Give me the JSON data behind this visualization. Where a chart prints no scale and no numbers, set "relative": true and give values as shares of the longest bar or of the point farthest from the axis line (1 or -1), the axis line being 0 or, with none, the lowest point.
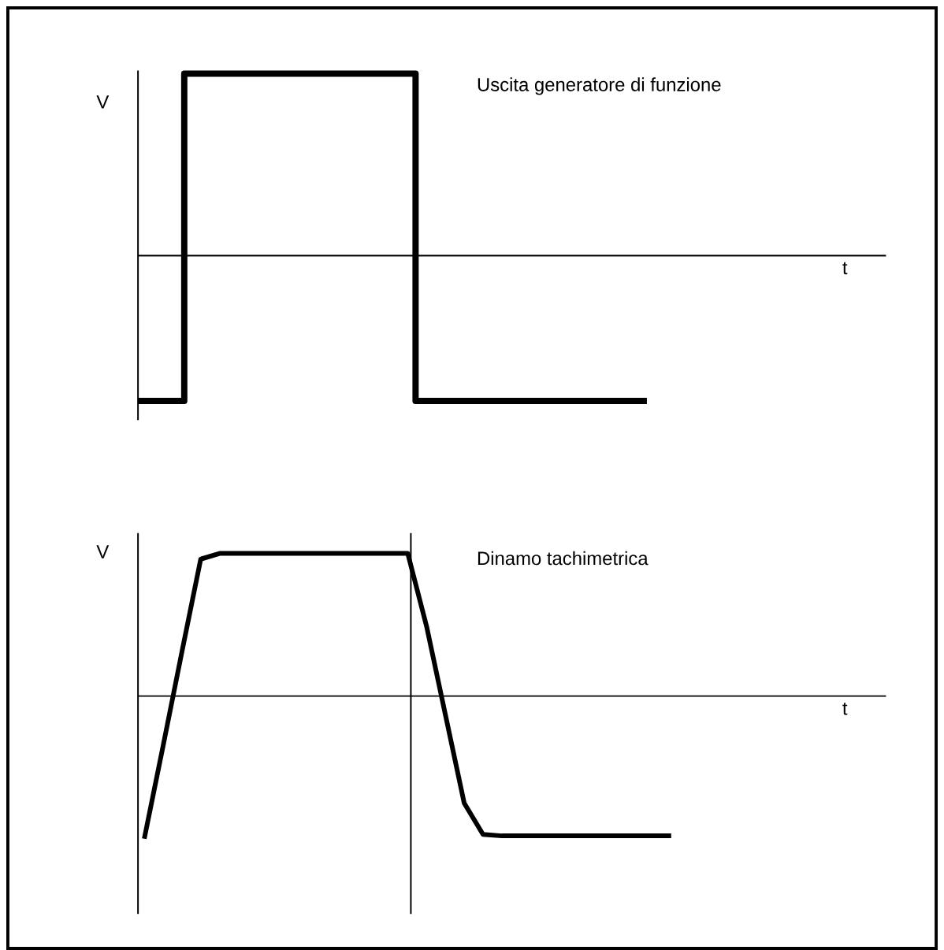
{
  "chart_data": [
    {
      "type": "step",
      "title": "Uscita generatore di funzione",
      "xlabel": "t",
      "ylabel": "V",
      "relative": true,
      "line_style": "solid",
      "marker": "none",
      "categories": [
        null,
        null,
        null,
        null,
        null,
        null,
        null,
        null,
        null,
        null,
        null,
        null,
        null,
        null,
        null,
        null,
        null
      ],
      "series": [
        {
          "color": "#000000",
          "values": [
            -0.8,
            1,
            1,
            1,
            1,
            1,
            -0.8,
            -0.8,
            -0.8,
            -0.8,
            -0.8,
            -0.8,
            null,
            null,
            null,
            null,
            null
          ]
        }
      ]
    },
    {
      "type": "line",
      "title": "Dinamo tachimetrica",
      "xlabel": "t",
      "ylabel": "V",
      "relative": true,
      "line_style": "solid",
      "marker": "none",
      "categories": [
        null,
        null,
        null,
        null,
        null,
        null,
        null,
        null,
        null,
        null,
        null,
        null,
        null,
        null,
        null,
        null,
        null,
        null,
        null,
        null,
        null,
        null,
        null,
        null,
        null,
        null,
        null,
        null,
        null,
        null,
        null,
        null,
        null,
        null,
        null,
        null,
        null,
        null,
        null,
        null
      ],
      "series": [
        {
          "color": "#000000",
          "values": [
            -1,
            -0.35,
            0.31,
            0.96,
            1,
            1,
            1,
            1,
            1,
            1,
            1,
            1,
            1,
            1,
            1,
            0.49,
            -0.13,
            -0.75,
            -0.97,
            -0.98,
            -0.98,
            -0.98,
            -0.98,
            -0.98,
            -0.98,
            -0.98,
            -0.98,
            -0.98,
            -0.98,
            null,
            null,
            null,
            null,
            null,
            null,
            null,
            null,
            null,
            null,
            null
          ]
        }
      ]
    }
  ]
}
